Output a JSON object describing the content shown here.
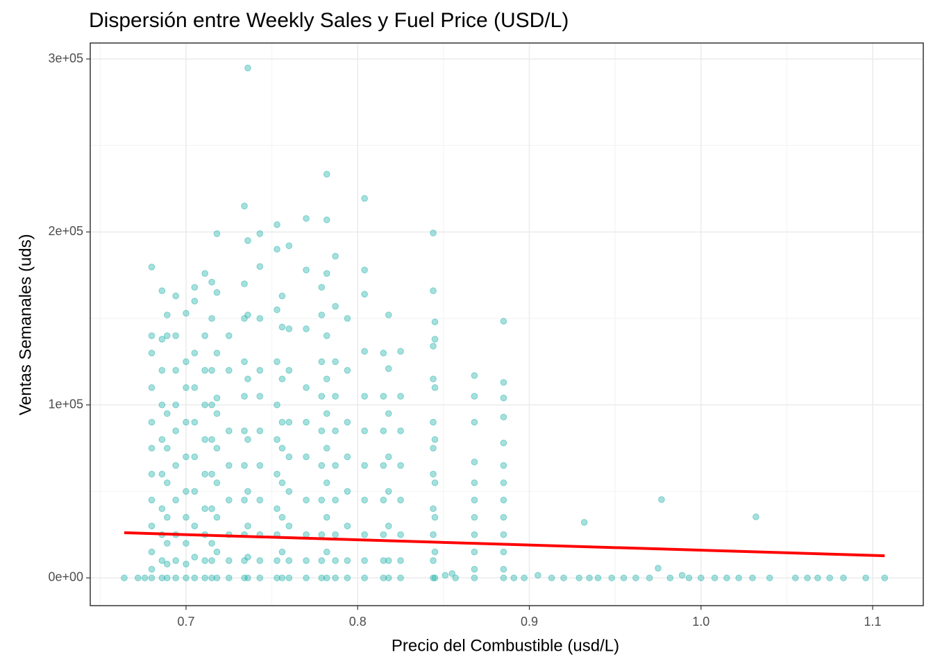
{
  "chart_data": {
    "type": "scatter",
    "title": "Dispersión entre Weekly Sales y Fuel Price (USD/L)",
    "x_label": "Precio del Combustible (usd/L)",
    "y_label": "Ventas Semanales (uds)",
    "xlim": [
      0.6442,
      1.1295
    ],
    "ylim": [
      -16045,
      309226
    ],
    "xticks": [
      0.7,
      0.8,
      0.9,
      {
        "value": 1.0,
        "label": "1.0"
      },
      1.1
    ],
    "yticks": [
      {
        "value": 0,
        "label": "0e+00"
      },
      {
        "value": 100000,
        "label": "1e+05"
      },
      {
        "value": 200000,
        "label": "2e+05"
      },
      {
        "value": 300000,
        "label": "3e+05"
      }
    ],
    "xminor": [
      0.65,
      0.75,
      0.85,
      0.95,
      1.05
    ],
    "yminor": [
      50000,
      150000,
      250000
    ],
    "grid": true,
    "series": [
      {
        "color": "#20B2AA",
        "x": [
          0.68,
          0.68,
          0.68,
          0.68,
          0.68,
          0.68,
          0.68,
          0.68,
          0.68,
          0.68,
          0.68,
          0.68,
          0.686,
          0.686,
          0.686,
          0.686,
          0.686,
          0.686,
          0.686,
          0.686,
          0.686,
          0.686,
          0.689,
          0.689,
          0.689,
          0.689,
          0.689,
          0.689,
          0.689,
          0.689,
          0.689,
          0.694,
          0.694,
          0.694,
          0.694,
          0.694,
          0.694,
          0.694,
          0.694,
          0.694,
          0.694,
          0.7,
          0.7,
          0.7,
          0.7,
          0.7,
          0.7,
          0.7,
          0.7,
          0.7,
          0.7,
          0.705,
          0.705,
          0.705,
          0.705,
          0.705,
          0.705,
          0.705,
          0.705,
          0.705,
          0.705,
          0.711,
          0.711,
          0.711,
          0.711,
          0.711,
          0.711,
          0.711,
          0.711,
          0.711,
          0.711,
          0.715,
          0.715,
          0.715,
          0.715,
          0.715,
          0.715,
          0.715,
          0.715,
          0.715,
          0.715,
          0.718,
          0.718,
          0.718,
          0.718,
          0.718,
          0.718,
          0.718,
          0.718,
          0.718,
          0.718,
          0.725,
          0.725,
          0.725,
          0.725,
          0.725,
          0.725,
          0.725,
          0.725,
          0.734,
          0.734,
          0.734,
          0.734,
          0.734,
          0.734,
          0.734,
          0.734,
          0.734,
          0.734,
          0.734,
          0.736,
          0.736,
          0.736,
          0.736,
          0.736,
          0.736,
          0.736,
          0.736,
          0.736,
          0.743,
          0.743,
          0.743,
          0.743,
          0.743,
          0.743,
          0.743,
          0.743,
          0.743,
          0.743,
          0.743,
          0.753,
          0.753,
          0.753,
          0.753,
          0.753,
          0.753,
          0.753,
          0.753,
          0.753,
          0.753,
          0.753,
          0.756,
          0.756,
          0.756,
          0.756,
          0.756,
          0.756,
          0.756,
          0.756,
          0.756,
          0.76,
          0.76,
          0.76,
          0.76,
          0.76,
          0.76,
          0.76,
          0.76,
          0.76,
          0.77,
          0.77,
          0.77,
          0.77,
          0.77,
          0.77,
          0.77,
          0.77,
          0.77,
          0.77,
          0.779,
          0.779,
          0.779,
          0.779,
          0.779,
          0.779,
          0.779,
          0.779,
          0.779,
          0.779,
          0.782,
          0.782,
          0.782,
          0.782,
          0.782,
          0.782,
          0.782,
          0.782,
          0.782,
          0.782,
          0.782,
          0.787,
          0.787,
          0.787,
          0.787,
          0.787,
          0.787,
          0.787,
          0.787,
          0.787,
          0.787,
          0.794,
          0.794,
          0.794,
          0.794,
          0.794,
          0.794,
          0.794,
          0.794,
          0.804,
          0.804,
          0.804,
          0.804,
          0.804,
          0.804,
          0.804,
          0.804,
          0.804,
          0.804,
          0.804,
          0.815,
          0.815,
          0.815,
          0.815,
          0.815,
          0.815,
          0.815,
          0.815,
          0.818,
          0.818,
          0.818,
          0.818,
          0.818,
          0.818,
          0.818,
          0.818,
          0.825,
          0.825,
          0.825,
          0.825,
          0.825,
          0.825,
          0.825,
          0.825,
          0.844,
          0.844,
          0.844,
          0.844,
          0.844,
          0.844,
          0.844,
          0.844,
          0.844,
          0.844,
          0.844,
          0.845,
          0.845,
          0.845,
          0.845,
          0.845,
          0.845,
          0.845,
          0.845,
          0.868,
          0.868,
          0.868,
          0.868,
          0.868,
          0.868,
          0.868,
          0.868,
          0.868,
          0.868,
          0.868,
          0.885,
          0.885,
          0.885,
          0.885,
          0.885,
          0.885,
          0.885,
          0.885,
          0.885,
          0.885,
          0.885,
          0.885,
          0.885,
          0.664,
          0.672,
          0.676,
          0.851,
          0.855,
          0.857,
          0.891,
          0.897,
          0.905,
          0.913,
          0.92,
          0.929,
          0.935,
          0.94,
          0.948,
          0.955,
          0.962,
          0.97,
          0.982,
          0.989,
          0.993,
          1.0,
          1.008,
          1.015,
          1.022,
          1.03,
          1.04,
          1.055,
          1.062,
          1.068,
          1.075,
          1.083,
          1.096,
          1.107,
          0.932,
          0.977,
          1.032,
          0.975
        ],
        "values": [
          0,
          5000,
          15000,
          30000,
          45000,
          60000,
          75000,
          90000,
          110000,
          130000,
          140000,
          179700,
          0,
          10000,
          25000,
          40000,
          60000,
          80000,
          100000,
          120000,
          138000,
          166000,
          0,
          8000,
          20000,
          35000,
          55000,
          75000,
          95000,
          140000,
          152000,
          0,
          10000,
          25000,
          45000,
          65000,
          85000,
          100000,
          120000,
          140000,
          163000,
          0,
          8000,
          20000,
          35000,
          50000,
          70000,
          90000,
          110000,
          125000,
          153000,
          0,
          12000,
          30000,
          50000,
          70000,
          90000,
          110000,
          130000,
          160000,
          168000,
          0,
          10000,
          25000,
          40000,
          60000,
          80000,
          100000,
          120000,
          140000,
          176000,
          0,
          10000,
          20000,
          40000,
          60000,
          80000,
          100000,
          120000,
          150000,
          171000,
          0,
          15000,
          35000,
          55000,
          75000,
          95000,
          104000,
          130000,
          165000,
          199000,
          0,
          10000,
          25000,
          45000,
          65000,
          85000,
          120000,
          140000,
          0,
          10000,
          25000,
          45000,
          65000,
          85000,
          105000,
          125000,
          150000,
          170000,
          215000,
          0,
          12000,
          30000,
          50000,
          80000,
          115000,
          152000,
          195000,
          294800,
          0,
          10000,
          25000,
          45000,
          65000,
          85000,
          105000,
          120000,
          150000,
          180000,
          199000,
          0,
          10000,
          25000,
          40000,
          60000,
          80000,
          100000,
          125000,
          155000,
          190000,
          204200,
          0,
          15000,
          35000,
          55000,
          75000,
          90000,
          115000,
          145000,
          163000,
          0,
          10000,
          30000,
          50000,
          70000,
          90000,
          120000,
          144000,
          192000,
          0,
          10000,
          25000,
          45000,
          70000,
          90000,
          110000,
          144000,
          178000,
          207800,
          0,
          10000,
          25000,
          45000,
          65000,
          85000,
          105000,
          125000,
          152000,
          168000,
          0,
          15000,
          35000,
          55000,
          75000,
          95000,
          115000,
          140000,
          176000,
          207000,
          233400,
          0,
          10000,
          25000,
          45000,
          65000,
          85000,
          105000,
          125000,
          157000,
          186000,
          0,
          10000,
          30000,
          50000,
          70000,
          90000,
          120000,
          150000,
          0,
          10000,
          25000,
          45000,
          65000,
          85000,
          105000,
          131000,
          164000,
          178000,
          219400,
          0,
          10000,
          25000,
          45000,
          65000,
          85000,
          105000,
          130000,
          0,
          10000,
          30000,
          50000,
          70000,
          95000,
          121000,
          152000,
          0,
          10000,
          25000,
          45000,
          65000,
          85000,
          105000,
          131000,
          0,
          10000,
          25000,
          40000,
          60000,
          75000,
          90000,
          115000,
          134000,
          166000,
          199400,
          0,
          15000,
          35000,
          55000,
          80000,
          110000,
          138000,
          148000,
          0,
          5000,
          15000,
          25000,
          35000,
          45000,
          55000,
          67000,
          90000,
          105000,
          117000,
          0,
          5000,
          15000,
          25000,
          35000,
          45000,
          55000,
          65000,
          78000,
          93000,
          104000,
          113000,
          148400,
          0,
          0,
          0,
          1500,
          2500,
          0,
          0,
          0,
          1500,
          0,
          0,
          0,
          0,
          0,
          0,
          0,
          0,
          0,
          0,
          1500,
          0,
          0,
          0,
          0,
          0,
          0,
          0,
          0,
          0,
          0,
          0,
          0,
          0,
          0,
          32100,
          45300,
          35300,
          5600
        ]
      }
    ],
    "trend": {
      "color": "#ff0000",
      "x": [
        0.664,
        1.107
      ],
      "y": [
        26100,
        12800
      ]
    }
  }
}
